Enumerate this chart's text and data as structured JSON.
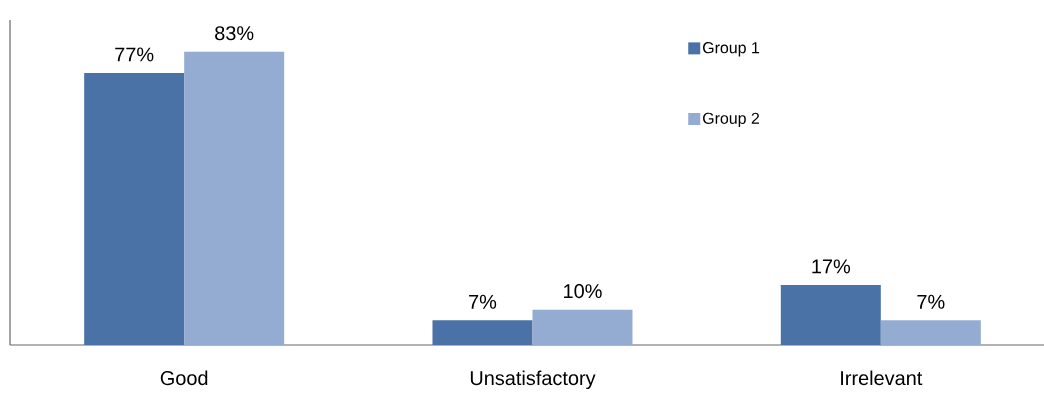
{
  "chart_data": {
    "type": "bar",
    "categories": [
      "Good",
      "Unsatisfactory",
      "Irrelevant"
    ],
    "series": [
      {
        "name": "Group 1",
        "color": "#4a72a6",
        "values": [
          77,
          7,
          17
        ],
        "value_labels": [
          "77%",
          "7%",
          "17%"
        ]
      },
      {
        "name": "Group 2",
        "color": "#94acd2",
        "values": [
          83,
          10,
          7
        ],
        "value_labels": [
          "83%",
          "10%",
          "7%"
        ]
      }
    ],
    "ylim": [
      0,
      92
    ],
    "tick_labels": "x",
    "legend": "top right"
  }
}
